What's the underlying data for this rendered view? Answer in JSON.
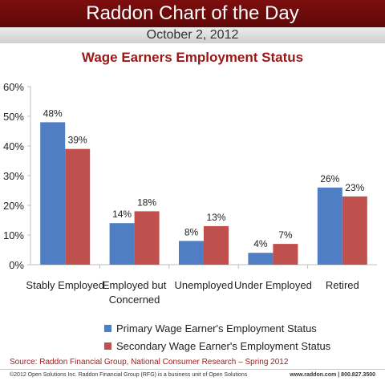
{
  "header": {
    "title": "Raddon Chart of the Day",
    "date": "October 2, 2012"
  },
  "colors": {
    "banner": "#7d0e0e",
    "title": "#9b1717",
    "primary": "#4f7ec4",
    "secondary": "#c0504d",
    "axis": "#bfbfbf"
  },
  "chart_data": {
    "type": "bar",
    "title": "Wage Earners Employment Status",
    "xlabel": "",
    "ylabel": "",
    "ylim": [
      0,
      60
    ],
    "yticks": [
      "0%",
      "10%",
      "20%",
      "30%",
      "40%",
      "50%",
      "60%"
    ],
    "grid": false,
    "legend_position": "bottom",
    "categories": [
      "Stably Employed",
      "Employed but Concerned",
      "Unemployed",
      "Under Employed",
      "Retired"
    ],
    "category_lines": [
      [
        "Stably Employed"
      ],
      [
        "Employed but",
        "Concerned"
      ],
      [
        "Unemployed"
      ],
      [
        "Under Employed"
      ],
      [
        "Retired"
      ]
    ],
    "series": [
      {
        "name": "Primary Wage Earner's Employment Status",
        "color": "#4f7ec4",
        "values": [
          48,
          14,
          8,
          4,
          26
        ],
        "labels": [
          "48%",
          "14%",
          "8%",
          "4%",
          "26%"
        ]
      },
      {
        "name": "Secondary Wage Earner's Employment Status",
        "color": "#c0504d",
        "values": [
          39,
          18,
          13,
          7,
          23
        ],
        "labels": [
          "39%",
          "18%",
          "13%",
          "7%",
          "23%"
        ]
      }
    ]
  },
  "footer": {
    "source": "Source: Raddon Financial Group, National Consumer Research – Spring 2012",
    "copyright": "©2012 Open Solutions Inc. Raddon Financial Group (RFG) is a business unit of Open Solutions",
    "contact": "www.raddon.com  |  800.827.3500"
  }
}
